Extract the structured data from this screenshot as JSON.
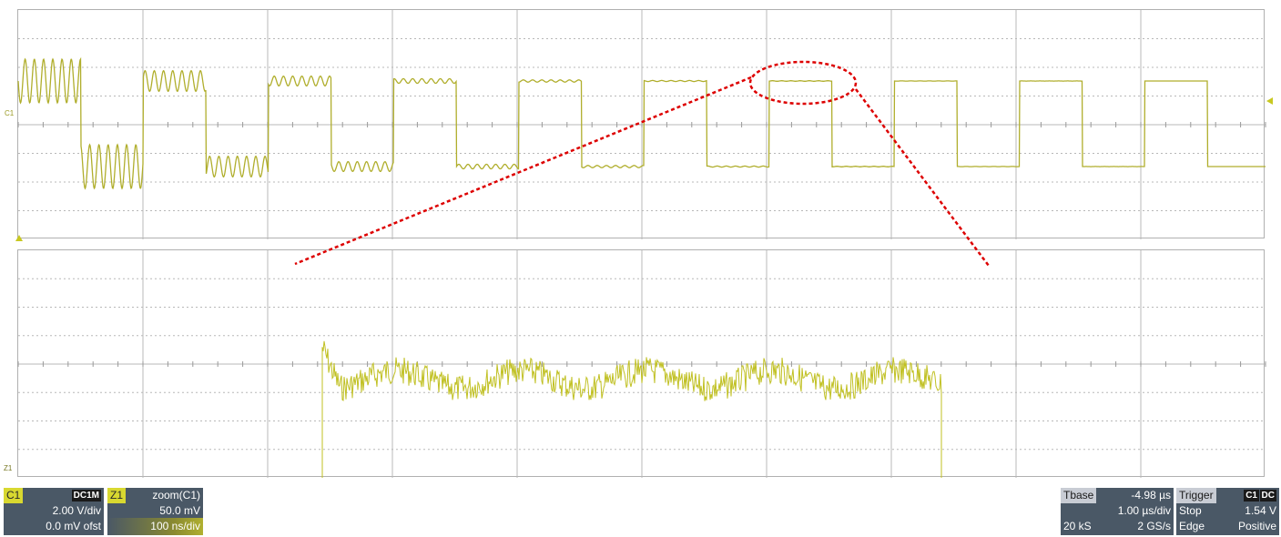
{
  "upper": {
    "channel_label": "C1"
  },
  "lower": {
    "channel_label": "Z1"
  },
  "colors": {
    "trace": "#b0ae2c",
    "trace_lower": "#c0c022",
    "grid": "#b8b8b8",
    "annotation": "#dd0000",
    "panel_bg": "#4a5866",
    "channel_tag": "#d8d830"
  },
  "channel_box": {
    "tag": "C1",
    "coupling": "DC1M",
    "scale": "2.00 V/div",
    "offset": "0.0 mV ofst"
  },
  "zoom_box": {
    "tag": "Z1",
    "source": "zoom(C1)",
    "scale": "50.0 mV",
    "timescale": "100 ns/div"
  },
  "timebase_box": {
    "label": "Tbase",
    "delay": "-4.98 µs",
    "timescale": "1.00 µs/div",
    "samples": "20 kS",
    "rate": "2 GS/s"
  },
  "trigger_box": {
    "label": "Trigger",
    "source_tag": "C1",
    "coupling_tag": "DC",
    "mode": "Stop",
    "level": "1.54 V",
    "type": "Edge",
    "slope": "Positive"
  }
}
